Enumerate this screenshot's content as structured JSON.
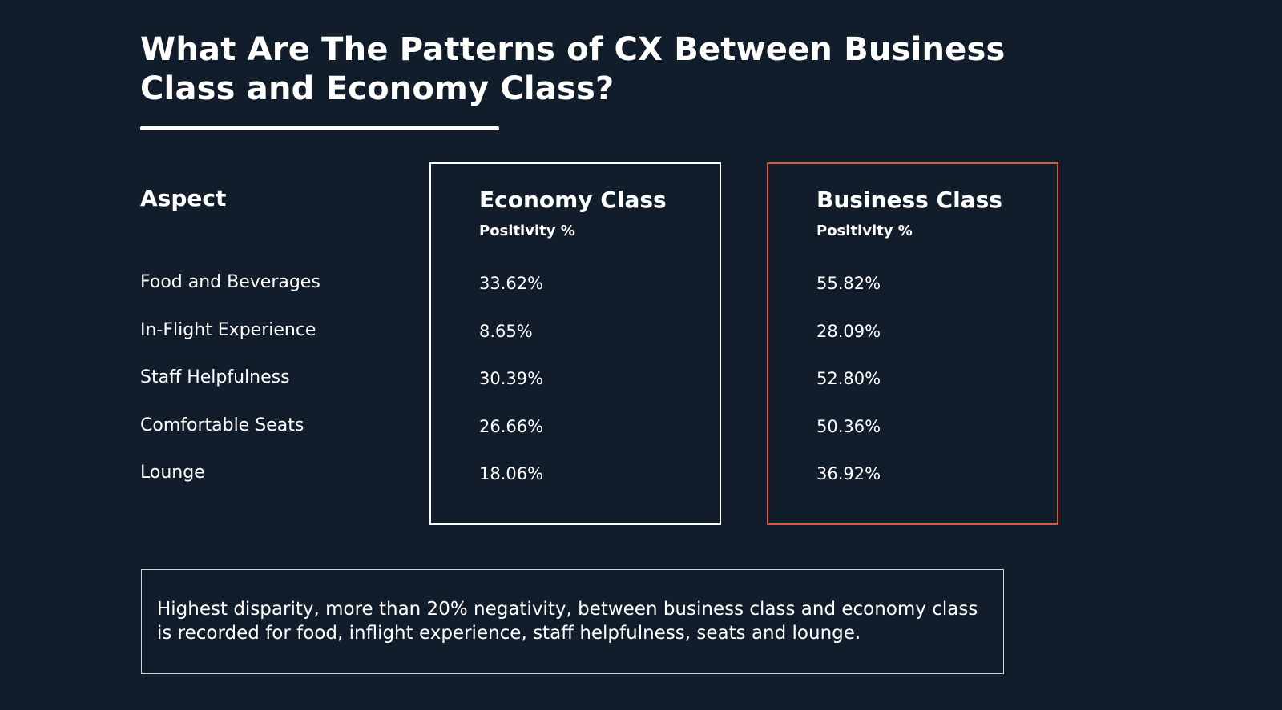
{
  "title": "What Are The Patterns of CX Between Business Class and Economy Class?",
  "aspect_column": {
    "heading": "Aspect",
    "items": [
      "Food and Beverages",
      "In-Flight Experience",
      "Staff Helpfulness",
      "Comfortable Seats",
      "Lounge"
    ]
  },
  "economy": {
    "heading": "Economy Class",
    "subheading": "Positivity %",
    "values": [
      "33.62%",
      "8.65%",
      "30.39%",
      "26.66%",
      "18.06%"
    ]
  },
  "business": {
    "heading": "Business Class",
    "subheading": "Positivity %",
    "values": [
      "55.82%",
      "28.09%",
      "52.80%",
      "50.36%",
      "36.92%"
    ]
  },
  "note": "Highest disparity, more than 20% negativity, between business class and economy class is recorded for food, inflight experience, staff helpfulness, seats and lounge.",
  "colors": {
    "background": "#121d2b",
    "text": "#ffffff",
    "economy_border": "#ffffff",
    "business_border": "#d9573a"
  }
}
